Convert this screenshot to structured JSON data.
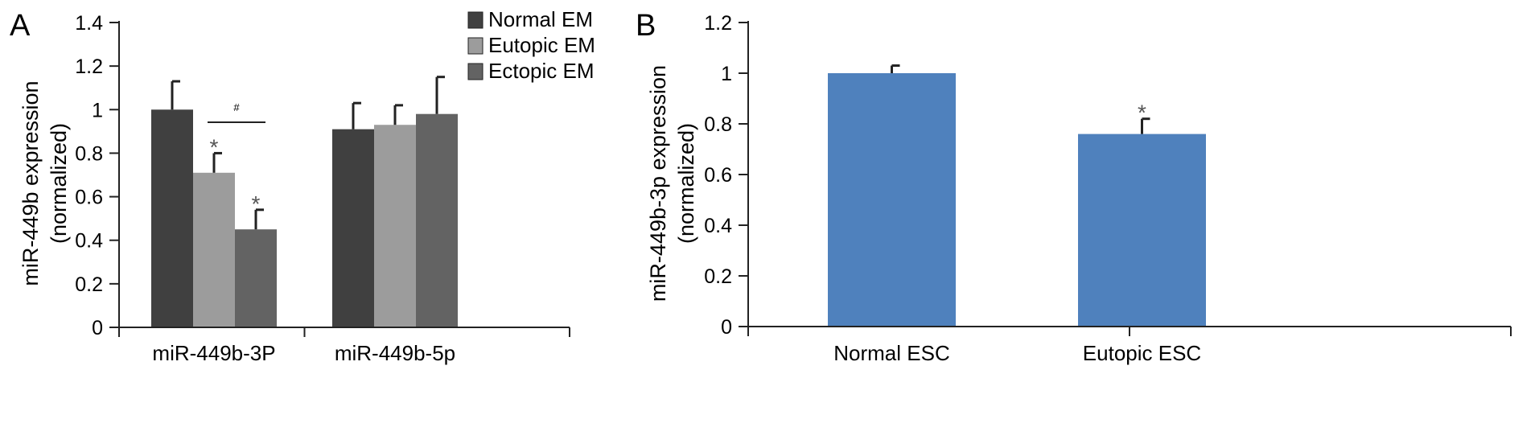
{
  "chart_data": [
    {
      "panel": "A",
      "type": "bar",
      "categories": [
        "miR-449b-3P",
        "miR-449b-5p"
      ],
      "series": [
        {
          "name": "Normal EM",
          "color": "#404040",
          "values": [
            1.0,
            0.91
          ],
          "errors": [
            0.13,
            0.12
          ]
        },
        {
          "name": "Eutopic EM",
          "color": "#9c9c9c",
          "values": [
            0.71,
            0.93
          ],
          "errors": [
            0.09,
            0.09
          ]
        },
        {
          "name": "Ectopic EM",
          "color": "#636363",
          "values": [
            0.45,
            0.98
          ],
          "errors": [
            0.09,
            0.17
          ]
        }
      ],
      "significance": [
        {
          "category": "miR-449b-3P",
          "series": "Eutopic EM",
          "symbol": "*"
        },
        {
          "category": "miR-449b-3P",
          "series": "Ectopic EM",
          "symbol": "*"
        }
      ],
      "bracket": {
        "from_series": "Eutopic EM",
        "to_series": "Ectopic EM",
        "category": "miR-449b-3P",
        "symbol": "#"
      },
      "xlabel": "",
      "ylabel": [
        "miR-449b expression",
        "(normalized)"
      ],
      "ylim": [
        0,
        1.4
      ],
      "yticks": [
        0,
        0.2,
        0.4,
        0.6,
        0.8,
        1,
        1.2,
        1.4
      ],
      "ytick_labels": [
        "0",
        "0.2",
        "0.4",
        "0.6",
        "0.8",
        "1",
        "1.2",
        "1.4"
      ],
      "legend": "top-right",
      "grid": false
    },
    {
      "panel": "B",
      "type": "bar",
      "categories": [
        "Normal ESC",
        "Eutopic ESC"
      ],
      "series": [
        {
          "color": "#4f81bd",
          "values": [
            1.0,
            0.76
          ],
          "errors": [
            0.03,
            0.06
          ]
        }
      ],
      "significance": [
        {
          "category": "Eutopic ESC",
          "symbol": "*"
        }
      ],
      "xlabel": "",
      "ylabel": [
        "miR-449b-3p expression",
        "(normalized)"
      ],
      "ylim": [
        0,
        1.2
      ],
      "yticks": [
        0,
        0.2,
        0.4,
        0.6,
        0.8,
        1,
        1.2
      ],
      "ytick_labels": [
        "0",
        "0.2",
        "0.4",
        "0.6",
        "0.8",
        "1",
        "1.2"
      ],
      "legend": "none",
      "grid": false
    }
  ]
}
